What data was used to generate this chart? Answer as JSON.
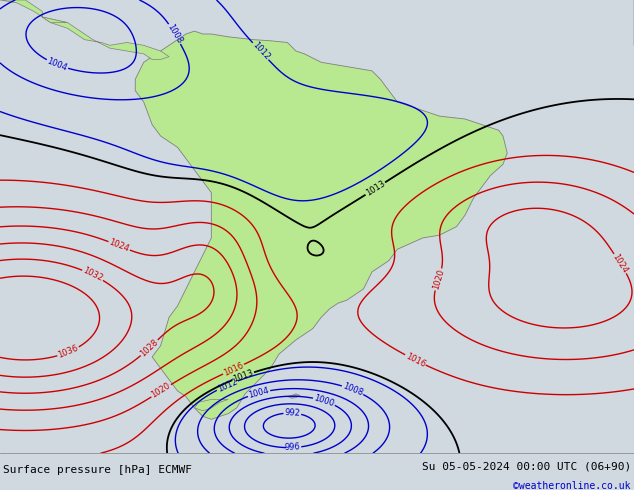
{
  "title_left": "Surface pressure [hPa] ECMWF",
  "title_right": "Su 05-05-2024 00:00 UTC (06+90)",
  "credit": "©weatheronline.co.uk",
  "bg_color": "#d0d8e0",
  "land_color": "#b8e890",
  "coast_color": "#808080",
  "isobar_black_color": "#000000",
  "isobar_blue_color": "#0000cc",
  "isobar_red_color": "#cc0000",
  "isobar_linewidth": 1.0,
  "font_size_labels": 6,
  "font_size_title": 8,
  "font_size_credit": 7,
  "figsize": [
    6.34,
    4.9
  ],
  "dpi": 100,
  "bottom_bar_color": "#e0e0e0",
  "bottom_bar_height": 0.075,
  "lon_min": -95,
  "lon_max": -20,
  "lat_min": -62,
  "lat_max": 18
}
